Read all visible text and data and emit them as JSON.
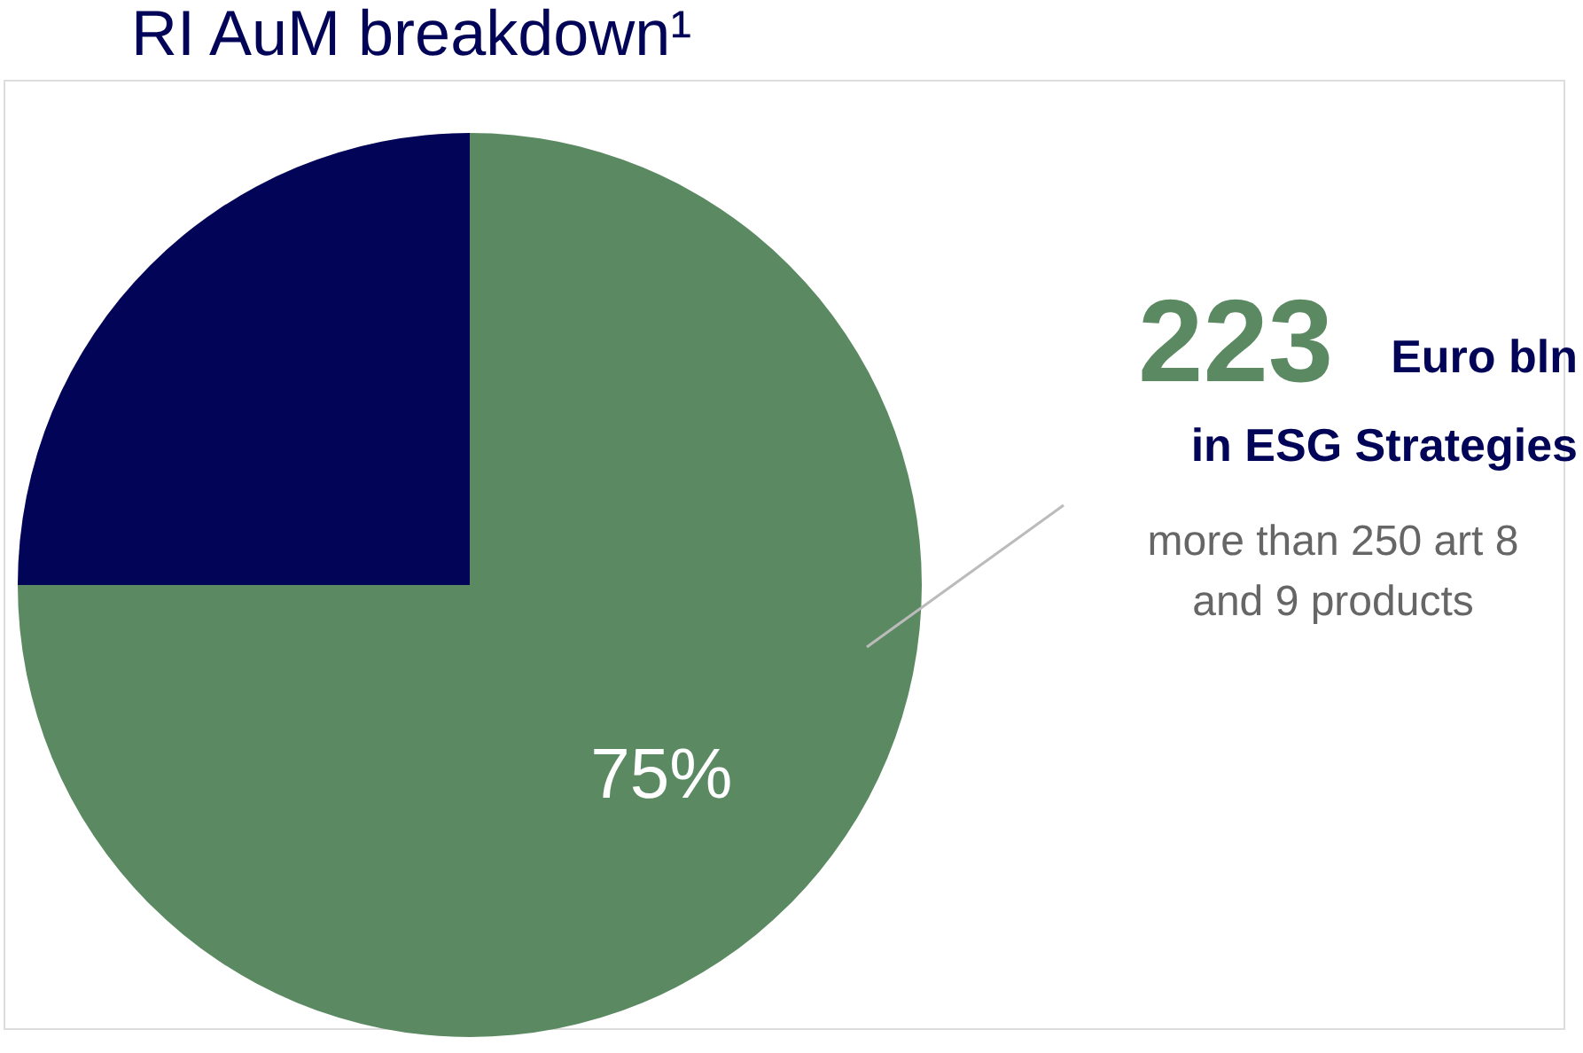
{
  "chart_data": {
    "type": "pie",
    "title": "RI AuM breakdown¹",
    "categories": [
      null,
      null
    ],
    "values": [
      75,
      25
    ],
    "colors": [
      "#5b8a62",
      "#020457"
    ],
    "value_labels": [
      "75%",
      null
    ],
    "annotations": [
      "223",
      "Euro bln",
      "in ESG Strategies",
      "more than 250 art 8 and 9 products"
    ]
  }
}
